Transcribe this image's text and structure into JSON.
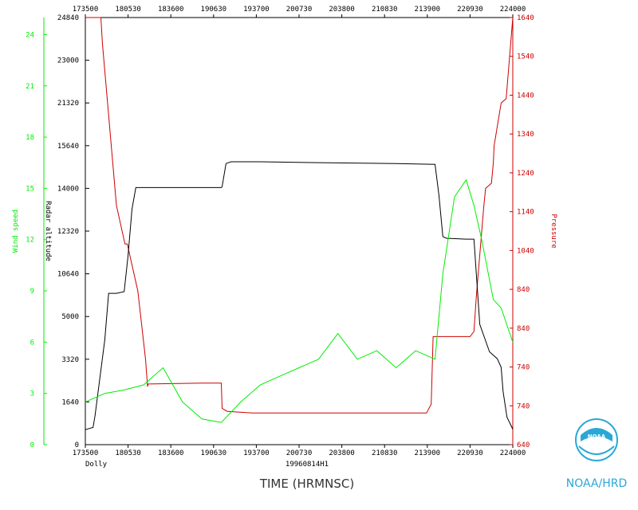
{
  "chart_data": {
    "type": "line",
    "storm_name": "Dolly",
    "flight_id": "19960814H1",
    "xlabel": "TIME (HRMNSC)",
    "x_ticks": [
      "173500",
      "180530",
      "183600",
      "190630",
      "193700",
      "200730",
      "203800",
      "210830",
      "213900",
      "220930",
      "224000"
    ],
    "axes": {
      "wind": {
        "label": "Wind speed",
        "ticks": [
          "0",
          "3",
          "6",
          "9",
          "12",
          "15",
          "18",
          "21",
          "24"
        ],
        "ylim": [
          0,
          25
        ],
        "color": "#00ee00"
      },
      "altitude": {
        "label": "Radar altitude",
        "ticks": [
          "0",
          "1640",
          "3320",
          "5000",
          "10640",
          "12320",
          "14000",
          "15640",
          "21320",
          "23000",
          "24840"
        ],
        "color": "#000000"
      },
      "pressure": {
        "label": "Pressure",
        "ticks": [
          "640",
          "740",
          "740",
          "840",
          "840",
          "1040",
          "1140",
          "1240",
          "1340",
          "1440",
          "1540",
          "1640"
        ],
        "ylim": [
          640,
          1640
        ],
        "color": "#cc0000"
      }
    },
    "series": [
      {
        "name": "Pressure",
        "color": "#cc0000",
        "x_hours": [
          0,
          0.05,
          0.06,
          0.4,
          0.44,
          0.8,
          1.02,
          1.08,
          1.35,
          1.55,
          1.6,
          1.62,
          3.0,
          3.5,
          3.52,
          3.65,
          4.3,
          6.5,
          8.0,
          8.78,
          8.9,
          8.95,
          9.9,
          10.0,
          10.06,
          10.25,
          10.3,
          10.45,
          10.5,
          10.52,
          10.7,
          10.83,
          11.0
        ],
        "y_pressure": [
          1650,
          1650,
          1645,
          1645,
          1580,
          1200,
          1110,
          1110,
          1000,
          840,
          776,
          782,
          784,
          784,
          725,
          718,
          714,
          714,
          714,
          714,
          735,
          893,
          893,
          905,
          985,
          1195,
          1240,
          1252,
          1300,
          1340,
          1440,
          1450,
          1660
        ]
      },
      {
        "name": "Radar altitude",
        "color": "#000000",
        "x_hours": [
          0,
          0.2,
          0.25,
          0.5,
          0.6,
          0.8,
          1.0,
          1.1,
          1.2,
          1.3,
          3.5,
          3.52,
          3.62,
          3.75,
          4.5,
          6.0,
          8.0,
          9.0,
          9.1,
          9.2,
          9.3,
          9.35,
          9.8,
          10.0,
          10.15,
          10.4,
          10.6,
          10.7,
          10.75,
          10.85,
          11.0
        ],
        "y_altitude": [
          870,
          1000,
          1700,
          6100,
          8800,
          8800,
          8900,
          11000,
          13700,
          14950,
          14950,
          15000,
          16350,
          16450,
          16450,
          16400,
          16350,
          16300,
          14500,
          12100,
          12000,
          12000,
          11950,
          11950,
          7000,
          5400,
          5000,
          4500,
          3100,
          1600,
          900
        ]
      },
      {
        "name": "Wind speed",
        "color": "#00ee00",
        "x_hours": [
          0,
          0.5,
          1.0,
          1.5,
          2.0,
          2.5,
          3.0,
          3.5,
          4.0,
          4.5,
          5.0,
          5.5,
          6.0,
          6.5,
          7.0,
          7.5,
          8.0,
          8.5,
          9.0,
          9.2,
          9.5,
          9.8,
          10.0,
          10.2,
          10.5,
          10.7,
          11.0
        ],
        "y_wind": [
          2.5,
          3.0,
          3.2,
          3.5,
          4.5,
          2.5,
          1.5,
          1.3,
          2.5,
          3.5,
          4.0,
          4.5,
          5.0,
          6.5,
          5.0,
          5.5,
          4.5,
          5.5,
          5.0,
          10.0,
          14.5,
          15.5,
          14.0,
          12.0,
          8.5,
          8.0,
          6.0
        ]
      }
    ],
    "time_range": [
      "173500",
      "224000"
    ]
  },
  "logo": {
    "text": "NOAA/HRD",
    "emblem_text": "NOAA"
  }
}
